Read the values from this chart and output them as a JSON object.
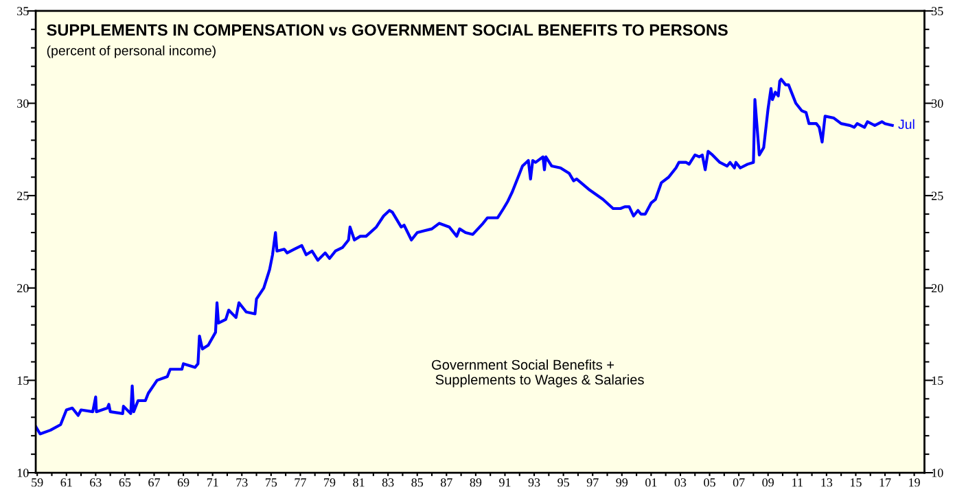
{
  "chart_data": {
    "type": "line",
    "title": "SUPPLEMENTS IN COMPENSATION vs GOVERNMENT SOCIAL BENEFITS TO PERSONS",
    "subtitle": "(percent of personal income)",
    "x": [
      1958.9,
      1959.2,
      1959.9,
      1960.6,
      1961.0,
      1961.4,
      1961.8,
      1962.0,
      1962.8,
      1963.0,
      1963.05,
      1963.8,
      1963.9,
      1964.0,
      1964.85,
      1964.9,
      1965.4,
      1965.5,
      1965.6,
      1965.9,
      1966.4,
      1966.6,
      1967.2,
      1967.9,
      1968.1,
      1968.9,
      1969.0,
      1969.8,
      1970.0,
      1970.1,
      1970.3,
      1970.7,
      1971.2,
      1971.3,
      1971.4,
      1971.9,
      1972.1,
      1972.6,
      1972.8,
      1973.3,
      1973.9,
      1974.0,
      1974.5,
      1974.9,
      1975.1,
      1975.3,
      1975.4,
      1975.9,
      1976.1,
      1976.6,
      1977.1,
      1977.4,
      1977.8,
      1978.2,
      1978.7,
      1979.0,
      1979.4,
      1979.9,
      1980.3,
      1980.4,
      1980.7,
      1981.1,
      1981.5,
      1982.2,
      1982.7,
      1983.1,
      1983.3,
      1983.9,
      1984.1,
      1984.6,
      1985.0,
      1985.5,
      1986.0,
      1986.5,
      1987.2,
      1987.7,
      1987.9,
      1988.3,
      1988.8,
      1989.5,
      1989.8,
      1990.5,
      1990.9,
      1991.2,
      1991.5,
      1992.2,
      1992.6,
      1992.75,
      1992.9,
      1993.1,
      1993.6,
      1993.7,
      1993.8,
      1994.2,
      1994.8,
      1995.4,
      1995.7,
      1995.9,
      1996.8,
      1997.7,
      1998.4,
      1998.9,
      1999.2,
      1999.5,
      1999.8,
      2000.1,
      2000.3,
      2000.6,
      2001.0,
      2001.3,
      2001.7,
      2002.2,
      2002.7,
      2002.9,
      2003.4,
      2003.6,
      2004.0,
      2004.3,
      2004.5,
      2004.7,
      2004.9,
      2005.2,
      2005.7,
      2006.2,
      2006.4,
      2006.7,
      2006.8,
      2007.1,
      2007.6,
      2008.0,
      2008.1,
      2008.4,
      2008.7,
      2009.0,
      2009.2,
      2009.3,
      2009.5,
      2009.7,
      2009.8,
      2009.9,
      2010.2,
      2010.4,
      2010.6,
      2010.9,
      2011.3,
      2011.6,
      2011.8,
      2012.3,
      2012.5,
      2012.7,
      2012.9,
      2013.5,
      2014.0,
      2014.6,
      2014.9,
      2015.1,
      2015.6,
      2015.8,
      2016.3,
      2016.8,
      2017.0,
      2017.5
    ],
    "series": [
      {
        "name": "Government Social Benefits +\n Supplements to Wages & Salaries",
        "color": "#0000ff",
        "values": [
          12.5,
          12.1,
          12.3,
          12.6,
          13.4,
          13.5,
          13.1,
          13.4,
          13.3,
          14.1,
          13.3,
          13.5,
          13.7,
          13.3,
          13.2,
          13.6,
          13.2,
          14.7,
          13.3,
          13.9,
          13.9,
          14.3,
          15.0,
          15.2,
          15.6,
          15.6,
          15.9,
          15.7,
          15.9,
          17.4,
          16.7,
          16.9,
          17.6,
          19.2,
          18.1,
          18.3,
          18.8,
          18.4,
          19.2,
          18.7,
          18.6,
          19.4,
          20.0,
          21.0,
          21.8,
          23.0,
          22.0,
          22.1,
          21.9,
          22.1,
          22.3,
          21.8,
          22.0,
          21.5,
          21.9,
          21.6,
          22.0,
          22.2,
          22.6,
          23.3,
          22.6,
          22.8,
          22.8,
          23.3,
          23.9,
          24.2,
          24.1,
          23.3,
          23.4,
          22.6,
          23.0,
          23.1,
          23.2,
          23.5,
          23.3,
          22.8,
          23.2,
          23.0,
          22.9,
          23.5,
          23.8,
          23.8,
          24.3,
          24.7,
          25.2,
          26.6,
          26.9,
          25.9,
          26.9,
          26.8,
          27.1,
          26.4,
          27.1,
          26.6,
          26.5,
          26.2,
          25.8,
          25.9,
          25.3,
          24.8,
          24.3,
          24.3,
          24.4,
          24.4,
          23.9,
          24.2,
          24.0,
          24.0,
          24.6,
          24.8,
          25.7,
          26.0,
          26.5,
          26.8,
          26.8,
          26.7,
          27.2,
          27.1,
          27.2,
          26.4,
          27.4,
          27.2,
          26.8,
          26.6,
          26.8,
          26.5,
          26.8,
          26.5,
          26.7,
          26.8,
          30.2,
          27.2,
          27.6,
          29.7,
          30.8,
          30.2,
          30.6,
          30.4,
          31.2,
          31.3,
          31.0,
          31.0,
          30.6,
          30.0,
          29.6,
          29.5,
          28.9,
          28.9,
          28.7,
          27.9,
          29.3,
          29.2,
          28.9,
          28.8,
          28.7,
          28.9,
          28.7,
          29.0,
          28.8,
          29.0,
          28.9,
          28.8
        ]
      }
    ],
    "annotations": [
      {
        "text": "Jul",
        "x": 2017.5,
        "y": 28.8
      }
    ],
    "xlim": [
      1958.9,
      2019.7
    ],
    "xticks": [
      {
        "value": 1959,
        "label": "59"
      },
      {
        "value": 1960,
        "label": null
      },
      {
        "value": 1961,
        "label": "61"
      },
      {
        "value": 1962,
        "label": null
      },
      {
        "value": 1963,
        "label": "63"
      },
      {
        "value": 1964,
        "label": null
      },
      {
        "value": 1965,
        "label": "65"
      },
      {
        "value": 1966,
        "label": null
      },
      {
        "value": 1967,
        "label": "67"
      },
      {
        "value": 1968,
        "label": null
      },
      {
        "value": 1969,
        "label": "69"
      },
      {
        "value": 1970,
        "label": null
      },
      {
        "value": 1971,
        "label": "71"
      },
      {
        "value": 1972,
        "label": null
      },
      {
        "value": 1973,
        "label": "73"
      },
      {
        "value": 1974,
        "label": null
      },
      {
        "value": 1975,
        "label": "75"
      },
      {
        "value": 1976,
        "label": null
      },
      {
        "value": 1977,
        "label": "77"
      },
      {
        "value": 1978,
        "label": null
      },
      {
        "value": 1979,
        "label": "79"
      },
      {
        "value": 1980,
        "label": null
      },
      {
        "value": 1981,
        "label": "81"
      },
      {
        "value": 1982,
        "label": null
      },
      {
        "value": 1983,
        "label": "83"
      },
      {
        "value": 1984,
        "label": null
      },
      {
        "value": 1985,
        "label": "85"
      },
      {
        "value": 1986,
        "label": null
      },
      {
        "value": 1987,
        "label": "87"
      },
      {
        "value": 1988,
        "label": null
      },
      {
        "value": 1989,
        "label": "89"
      },
      {
        "value": 1990,
        "label": null
      },
      {
        "value": 1991,
        "label": "91"
      },
      {
        "value": 1992,
        "label": null
      },
      {
        "value": 1993,
        "label": "93"
      },
      {
        "value": 1994,
        "label": null
      },
      {
        "value": 1995,
        "label": "95"
      },
      {
        "value": 1996,
        "label": null
      },
      {
        "value": 1997,
        "label": "97"
      },
      {
        "value": 1998,
        "label": null
      },
      {
        "value": 1999,
        "label": "99"
      },
      {
        "value": 2000,
        "label": null
      },
      {
        "value": 2001,
        "label": "01"
      },
      {
        "value": 2002,
        "label": null
      },
      {
        "value": 2003,
        "label": "03"
      },
      {
        "value": 2004,
        "label": null
      },
      {
        "value": 2005,
        "label": "05"
      },
      {
        "value": 2006,
        "label": null
      },
      {
        "value": 2007,
        "label": "07"
      },
      {
        "value": 2008,
        "label": null
      },
      {
        "value": 2009,
        "label": "09"
      },
      {
        "value": 2010,
        "label": null
      },
      {
        "value": 2011,
        "label": "11"
      },
      {
        "value": 2012,
        "label": null
      },
      {
        "value": 2013,
        "label": "13"
      },
      {
        "value": 2014,
        "label": null
      },
      {
        "value": 2015,
        "label": "15"
      },
      {
        "value": 2016,
        "label": null
      },
      {
        "value": 2017,
        "label": "17"
      },
      {
        "value": 2018,
        "label": null
      },
      {
        "value": 2019,
        "label": "19"
      }
    ],
    "ylim": [
      10,
      35
    ],
    "yticks": [
      10,
      {
        "value": 11,
        "label": null
      },
      {
        "value": 12,
        "label": null
      },
      {
        "value": 13,
        "label": null
      },
      {
        "value": 14,
        "label": null
      },
      15,
      {
        "value": 16,
        "label": null
      },
      {
        "value": 17,
        "label": null
      },
      {
        "value": 18,
        "label": null
      },
      {
        "value": 19,
        "label": null
      },
      20,
      {
        "value": 21,
        "label": null
      },
      {
        "value": 22,
        "label": null
      },
      {
        "value": 23,
        "label": null
      },
      {
        "value": 24,
        "label": null
      },
      25,
      {
        "value": 26,
        "label": null
      },
      {
        "value": 27,
        "label": null
      },
      {
        "value": 28,
        "label": null
      },
      {
        "value": 29,
        "label": null
      },
      30,
      {
        "value": 31,
        "label": null
      },
      {
        "value": 32,
        "label": null
      },
      {
        "value": 33,
        "label": null
      },
      {
        "value": 34,
        "label": null
      },
      35
    ],
    "y2lim": [
      10,
      35
    ],
    "y2ticks": [
      10,
      {
        "value": 11,
        "label": null
      },
      {
        "value": 12,
        "label": null
      },
      {
        "value": 13,
        "label": null
      },
      {
        "value": 14,
        "label": null
      },
      15,
      {
        "value": 16,
        "label": null
      },
      {
        "value": 17,
        "label": null
      },
      {
        "value": 18,
        "label": null
      },
      {
        "value": 19,
        "label": null
      },
      20,
      {
        "value": 21,
        "label": null
      },
      {
        "value": 22,
        "label": null
      },
      {
        "value": 23,
        "label": null
      },
      {
        "value": 24,
        "label": null
      },
      25,
      {
        "value": 26,
        "label": null
      },
      {
        "value": 27,
        "label": null
      },
      {
        "value": 28,
        "label": null
      },
      {
        "value": 29,
        "label": null
      },
      30,
      {
        "value": 31,
        "label": null
      },
      {
        "value": 32,
        "label": null
      },
      {
        "value": 33,
        "label": null
      },
      {
        "value": 34,
        "label": null
      },
      35
    ],
    "grid": false,
    "legend": false,
    "marker": "none",
    "line_style": "solid"
  }
}
